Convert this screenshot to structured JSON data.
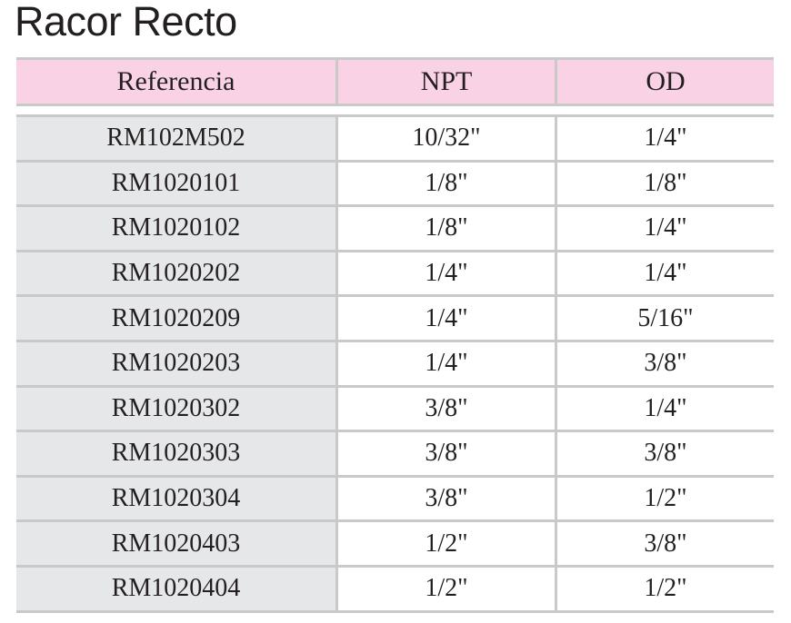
{
  "title": "Racor Recto",
  "table": {
    "headers": [
      "Referencia",
      "NPT",
      "OD"
    ],
    "rows": [
      [
        "RM102M502",
        "10/32\"",
        "1/4\""
      ],
      [
        "RM1020101",
        "1/8\"",
        "1/8\""
      ],
      [
        "RM1020102",
        "1/8\"",
        "1/4\""
      ],
      [
        "RM1020202",
        "1/4\"",
        "1/4\""
      ],
      [
        "RM1020209",
        "1/4\"",
        "5/16\""
      ],
      [
        "RM1020203",
        "1/4\"",
        "3/8\""
      ],
      [
        "RM1020302",
        "3/8\"",
        "1/4\""
      ],
      [
        "RM1020303",
        "3/8\"",
        "3/8\""
      ],
      [
        "RM1020304",
        "3/8\"",
        "1/2\""
      ],
      [
        "RM1020403",
        "1/2\"",
        "3/8\""
      ],
      [
        "RM1020404",
        "1/2\"",
        "1/2\""
      ]
    ]
  },
  "colors": {
    "header_bg": "#f9d3e5",
    "first_col_bg": "#e6e7e8",
    "rule": "#c9c9c9",
    "text": "#231f20"
  }
}
